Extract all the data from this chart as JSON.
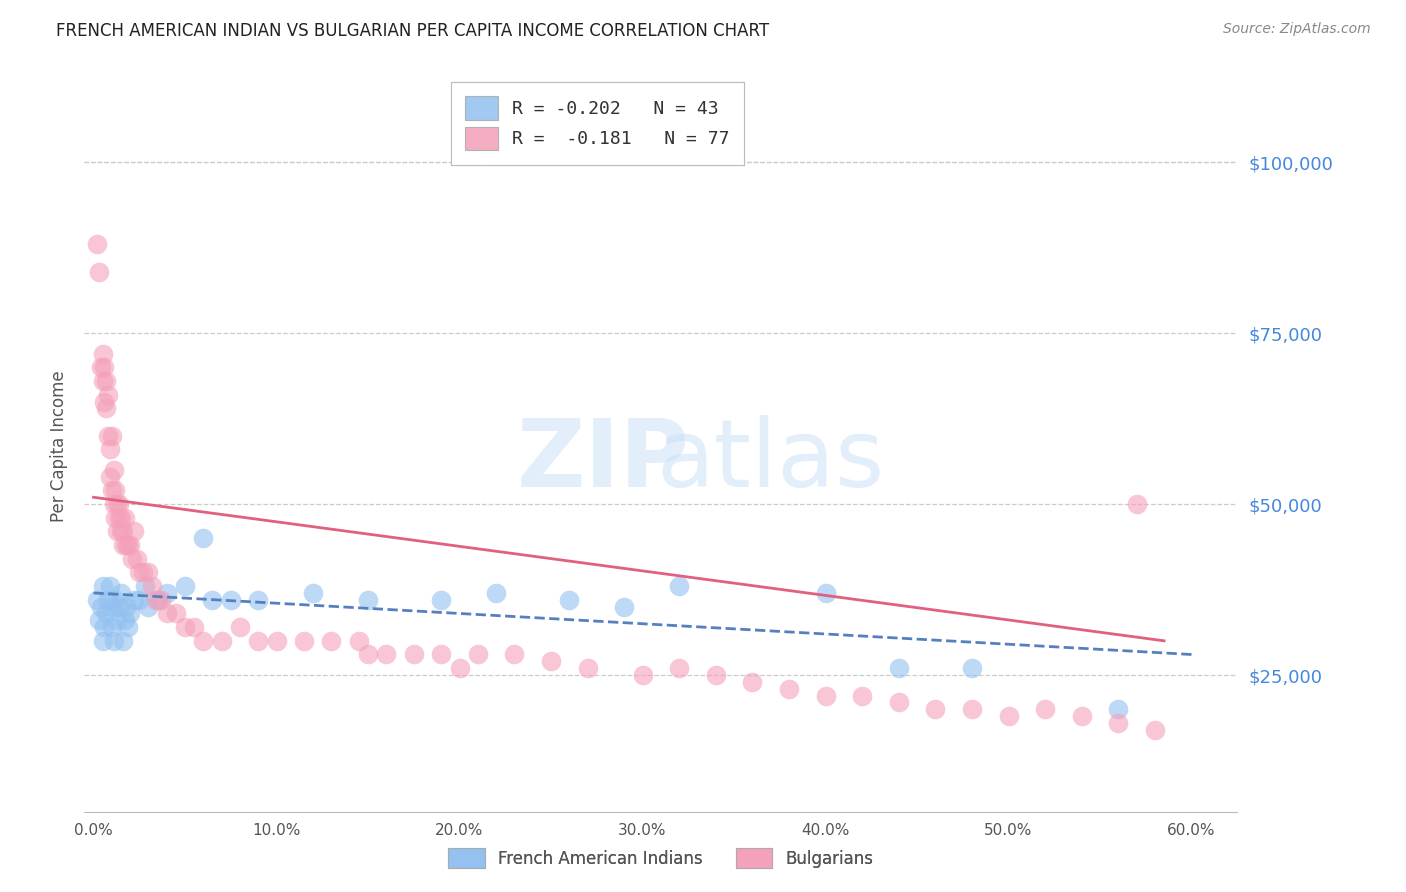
{
  "title": "FRENCH AMERICAN INDIAN VS BULGARIAN PER CAPITA INCOME CORRELATION CHART",
  "source": "Source: ZipAtlas.com",
  "ylabel": "Per Capita Income",
  "xlabel_ticks": [
    "0.0%",
    "10.0%",
    "20.0%",
    "30.0%",
    "40.0%",
    "50.0%",
    "60.0%"
  ],
  "xlabel_vals": [
    0.0,
    0.1,
    0.2,
    0.3,
    0.4,
    0.5,
    0.6
  ],
  "ytick_labels": [
    "$25,000",
    "$50,000",
    "$75,000",
    "$100,000"
  ],
  "ytick_vals": [
    25000,
    50000,
    75000,
    100000
  ],
  "ylim": [
    5000,
    112000
  ],
  "xlim": [
    -0.005,
    0.625
  ],
  "legend_label1": "French American Indians",
  "legend_label2": "Bulgarians",
  "blue_color": "#92c0f0",
  "pink_color": "#f4a0b8",
  "blue_line_color": "#5580c0",
  "pink_line_color": "#e06080",
  "title_color": "#222222",
  "source_color": "#888888",
  "right_axis_color": "#4488dd",
  "background_color": "#ffffff",
  "grid_color": "#cccccc",
  "blue_scatter_x": [
    0.002,
    0.003,
    0.004,
    0.005,
    0.005,
    0.006,
    0.007,
    0.008,
    0.009,
    0.01,
    0.01,
    0.011,
    0.012,
    0.013,
    0.014,
    0.015,
    0.016,
    0.017,
    0.018,
    0.019,
    0.02,
    0.022,
    0.025,
    0.028,
    0.03,
    0.035,
    0.04,
    0.05,
    0.06,
    0.065,
    0.075,
    0.09,
    0.12,
    0.15,
    0.19,
    0.22,
    0.26,
    0.29,
    0.32,
    0.4,
    0.44,
    0.48,
    0.56
  ],
  "blue_scatter_y": [
    36000,
    33000,
    35000,
    38000,
    30000,
    32000,
    34000,
    36000,
    38000,
    35000,
    32000,
    30000,
    36000,
    33000,
    35000,
    37000,
    30000,
    33000,
    35000,
    32000,
    34000,
    36000,
    36000,
    38000,
    35000,
    36000,
    37000,
    38000,
    45000,
    36000,
    36000,
    36000,
    37000,
    36000,
    36000,
    37000,
    36000,
    35000,
    38000,
    37000,
    26000,
    26000,
    20000
  ],
  "pink_scatter_x": [
    0.002,
    0.003,
    0.004,
    0.005,
    0.005,
    0.006,
    0.006,
    0.007,
    0.007,
    0.008,
    0.008,
    0.009,
    0.009,
    0.01,
    0.01,
    0.011,
    0.011,
    0.012,
    0.012,
    0.013,
    0.013,
    0.014,
    0.014,
    0.015,
    0.015,
    0.016,
    0.016,
    0.017,
    0.018,
    0.019,
    0.02,
    0.021,
    0.022,
    0.024,
    0.025,
    0.027,
    0.03,
    0.032,
    0.034,
    0.037,
    0.04,
    0.045,
    0.05,
    0.055,
    0.06,
    0.07,
    0.08,
    0.09,
    0.1,
    0.115,
    0.13,
    0.145,
    0.16,
    0.175,
    0.19,
    0.21,
    0.23,
    0.25,
    0.27,
    0.3,
    0.32,
    0.34,
    0.36,
    0.38,
    0.4,
    0.42,
    0.44,
    0.46,
    0.48,
    0.5,
    0.52,
    0.54,
    0.56,
    0.58,
    0.15,
    0.2,
    0.57
  ],
  "pink_scatter_y": [
    88000,
    84000,
    70000,
    68000,
    72000,
    65000,
    70000,
    68000,
    64000,
    66000,
    60000,
    58000,
    54000,
    60000,
    52000,
    55000,
    50000,
    52000,
    48000,
    50000,
    46000,
    48000,
    50000,
    46000,
    48000,
    46000,
    44000,
    48000,
    44000,
    44000,
    44000,
    42000,
    46000,
    42000,
    40000,
    40000,
    40000,
    38000,
    36000,
    36000,
    34000,
    34000,
    32000,
    32000,
    30000,
    30000,
    32000,
    30000,
    30000,
    30000,
    30000,
    30000,
    28000,
    28000,
    28000,
    28000,
    28000,
    27000,
    26000,
    25000,
    26000,
    25000,
    24000,
    23000,
    22000,
    22000,
    21000,
    20000,
    20000,
    19000,
    20000,
    19000,
    18000,
    17000,
    28000,
    26000,
    50000
  ],
  "blue_trendline_x": [
    0.0,
    0.6
  ],
  "blue_trendline_y": [
    37000,
    28000
  ],
  "pink_trendline_x": [
    0.0,
    0.585
  ],
  "pink_trendline_y": [
    51000,
    30000
  ],
  "legend_entries": [
    {
      "label": "R = -0.202   N = 43",
      "color": "#92c0f0"
    },
    {
      "label": "R =  -0.181   N = 77",
      "color": "#f4a0b8"
    }
  ]
}
